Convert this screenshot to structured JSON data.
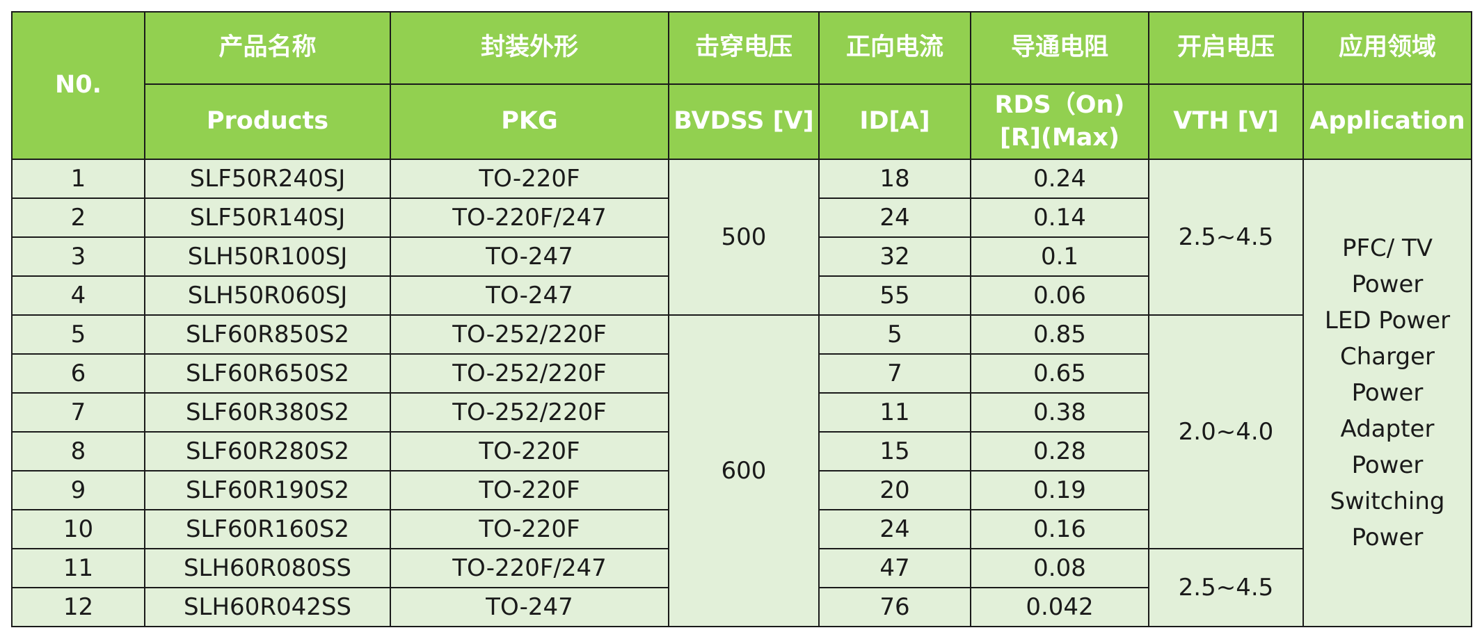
{
  "headers": {
    "no": "N0.",
    "products_cn": "产品名称",
    "products_en": "Products",
    "pkg_cn": "封装外形",
    "pkg_en": "PKG",
    "bvdss_cn": "击穿电压",
    "bvdss_en": "BVDSS [V]",
    "id_cn": "正向电流",
    "id_en": "ID[A]",
    "rds_cn": "导通电阻",
    "rds_en_1": "RDS（On)",
    "rds_en_2": "[R](Max)",
    "vth_cn": "开启电压",
    "vth_en": "VTH [V]",
    "app_cn": "应用领域",
    "app_en": "Application"
  },
  "rows": [
    {
      "no": "1",
      "product": "SLF50R240SJ",
      "pkg": "TO-220F",
      "id": "18",
      "rds": "0.24"
    },
    {
      "no": "2",
      "product": "SLF50R140SJ",
      "pkg": "TO-220F/247",
      "id": "24",
      "rds": "0.14"
    },
    {
      "no": "3",
      "product": "SLH50R100SJ",
      "pkg": "TO-247",
      "id": "32",
      "rds": "0.1"
    },
    {
      "no": "4",
      "product": "SLH50R060SJ",
      "pkg": "TO-247",
      "id": "55",
      "rds": "0.06"
    },
    {
      "no": "5",
      "product": "SLF60R850S2",
      "pkg": "TO-252/220F",
      "id": "5",
      "rds": "0.85"
    },
    {
      "no": "6",
      "product": "SLF60R650S2",
      "pkg": "TO-252/220F",
      "id": "7",
      "rds": "0.65"
    },
    {
      "no": "7",
      "product": "SLF60R380S2",
      "pkg": "TO-252/220F",
      "id": "11",
      "rds": "0.38"
    },
    {
      "no": "8",
      "product": "SLF60R280S2",
      "pkg": "TO-220F",
      "id": "15",
      "rds": "0.28"
    },
    {
      "no": "9",
      "product": "SLF60R190S2",
      "pkg": "TO-220F",
      "id": "20",
      "rds": "0.19"
    },
    {
      "no": "10",
      "product": "SLF60R160S2",
      "pkg": "TO-220F",
      "id": "24",
      "rds": "0.16"
    },
    {
      "no": "11",
      "product": "SLH60R080SS",
      "pkg": "TO-220F/247",
      "id": "47",
      "rds": "0.08"
    },
    {
      "no": "12",
      "product": "SLH60R042SS",
      "pkg": "TO-247",
      "id": "76",
      "rds": "0.042"
    }
  ],
  "bvdss_groups": [
    "500",
    "600"
  ],
  "vth_groups": [
    "2.5~4.5",
    "2.0~4.0",
    "2.5~4.5"
  ],
  "application_lines": [
    "PFC/ TV",
    "Power",
    "LED Power",
    "Charger",
    "Power",
    "Adapter",
    "Power",
    "Switching",
    "Power"
  ],
  "colors": {
    "header_bg": "#92d050",
    "header_text": "#ffffff",
    "body_bg": "#e2f0d9",
    "border": "#1a1a1a"
  }
}
